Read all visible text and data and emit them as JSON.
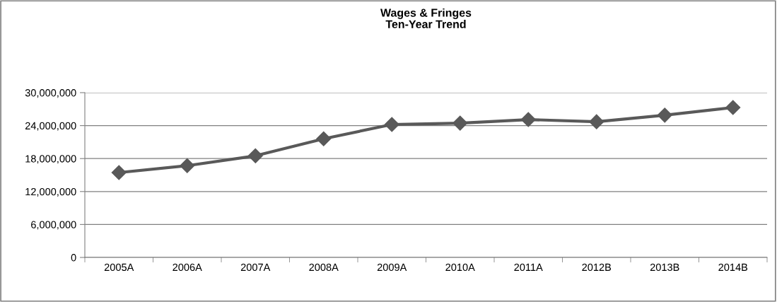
{
  "chart_data": {
    "type": "line",
    "title": "Wages & Fringes\nTen-Year Trend",
    "categories": [
      "2005A",
      "2006A",
      "2007A",
      "2008A",
      "2009A",
      "2010A",
      "2011A",
      "2012B",
      "2013B",
      "2014B"
    ],
    "series": [
      {
        "color": "#595959",
        "values": [
          15450000,
          16700000,
          18500000,
          21600000,
          24200000,
          24450000,
          25100000,
          24700000,
          25900000,
          27300000
        ]
      }
    ],
    "ylim": [
      0,
      30000000
    ],
    "yticks": [
      {
        "value": 0,
        "label": "0"
      },
      {
        "value": 6000000,
        "label": "6,000,000"
      },
      {
        "value": 12000000,
        "label": "12,000,000"
      },
      {
        "value": 18000000,
        "label": "18,000,000"
      },
      {
        "value": 24000000,
        "label": "24,000,000"
      },
      {
        "value": 30000000,
        "label": "30,000,000"
      }
    ],
    "grid": "y",
    "legend": false,
    "marker": "diamond",
    "line_style": "solid"
  }
}
